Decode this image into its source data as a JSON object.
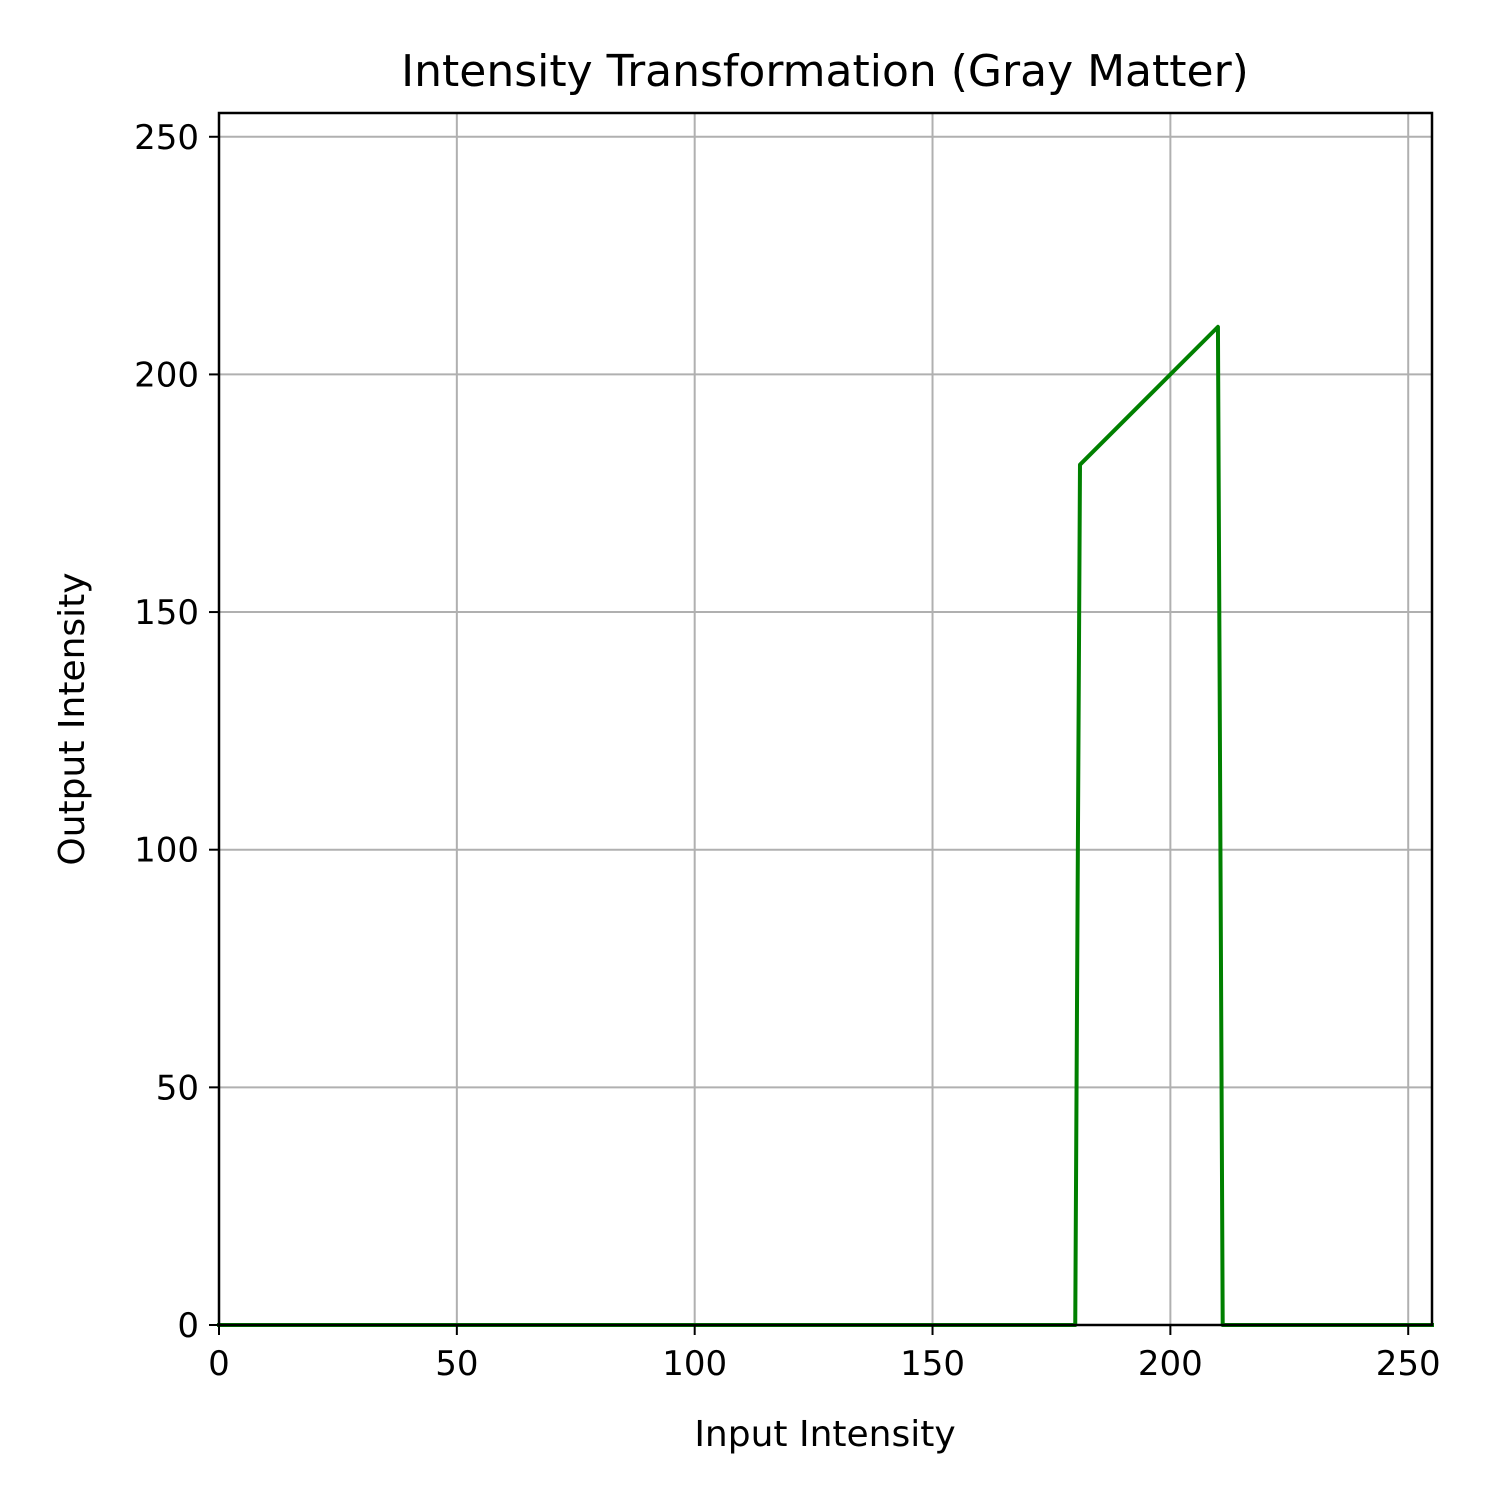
{
  "chart_data": {
    "type": "line",
    "title": "Intensity Transformation (Gray Matter)",
    "xlabel": "Input Intensity",
    "ylabel": "Output Intensity",
    "xlim": [
      0,
      255
    ],
    "ylim": [
      0,
      255
    ],
    "xticks": [
      0,
      50,
      100,
      150,
      200,
      250
    ],
    "yticks": [
      0,
      50,
      100,
      150,
      200,
      250
    ],
    "grid": true,
    "series": [
      {
        "color": "#008000",
        "x": [
          0,
          180,
          181,
          210,
          211,
          255
        ],
        "y": [
          0,
          0,
          181,
          210,
          0,
          0
        ]
      }
    ]
  }
}
